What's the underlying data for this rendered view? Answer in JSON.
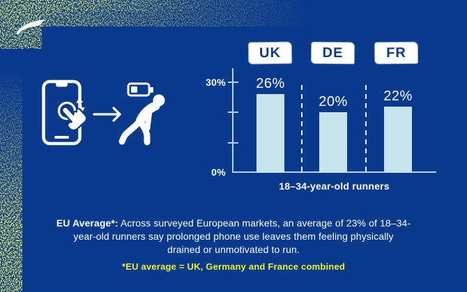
{
  "brand": {
    "logo_icon": "brooks-swoosh"
  },
  "illustration": {
    "phone_icon": "smartphone-with-scroll-gesture",
    "gesture_icon": "hand-doomscrolling",
    "arrow_icon": "arrow-right",
    "battery_icon": "low-battery",
    "runner_icon": "drained-slumped-runner"
  },
  "chart_data": {
    "type": "bar",
    "categories": [
      "UK",
      "DE",
      "FR"
    ],
    "values": [
      26,
      20,
      22
    ],
    "value_labels": [
      "26%",
      "20%",
      "22%"
    ],
    "title": "",
    "xlabel": "18–34-year-old runners",
    "ylabel": "",
    "ylim": [
      0,
      30
    ],
    "ytick_labels": {
      "top": "30%",
      "bottom": "0%"
    },
    "grid": "off",
    "legend": "none",
    "bar_color": "#c7e4ec",
    "separator_style": "dashed-white-vertical-lines"
  },
  "footer": {
    "lead": "EU Average*:",
    "body": "Across surveyed European markets, an average of 23% of 18–34- year-old runners say prolonged phone use leaves them feeling physically drained or unmotivated to run.",
    "footnote": "*EU average = UK, Germany and France combined"
  },
  "colors": {
    "background": "#0a3a8d",
    "bar_fill": "#c7e4ec",
    "axis": "#bad3e0",
    "spray_yellow": "#e5ef1c",
    "footnote_yellow": "#ecf227",
    "text_white": "#ffffff",
    "dark_blue_text": "#0a3a8d"
  }
}
